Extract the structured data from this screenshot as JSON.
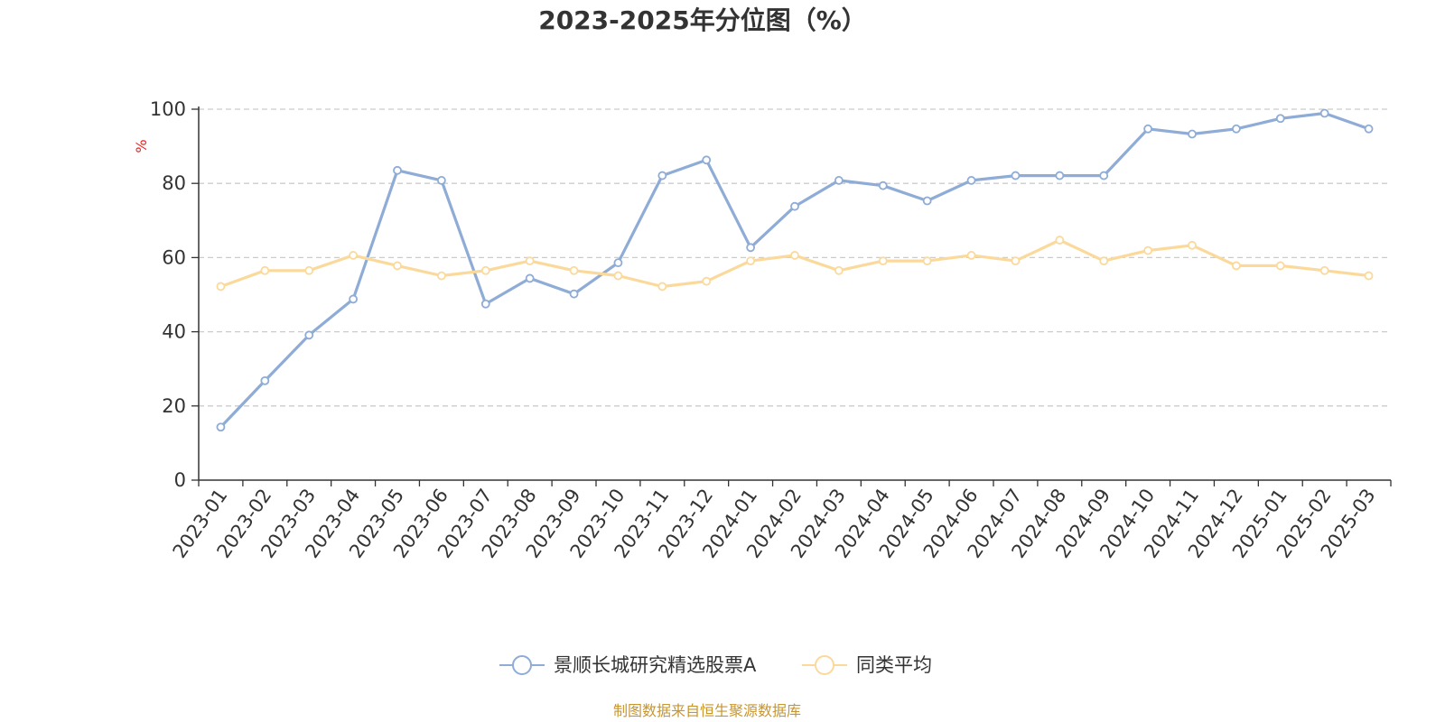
{
  "chart_data": {
    "type": "line",
    "title": "2023-2025年分位图（%）",
    "ylabel": "%",
    "ylim": [
      0,
      100
    ],
    "yticks": [
      "0",
      "20",
      "40",
      "60",
      "80",
      "100"
    ],
    "grid": true,
    "legend_position": "bottom",
    "categories": [
      "2023-01",
      "2023-02",
      "2023-03",
      "2023-04",
      "2023-05",
      "2023-06",
      "2023-07",
      "2023-08",
      "2023-09",
      "2023-10",
      "2023-11",
      "2023-12",
      "2024-01",
      "2024-02",
      "2024-03",
      "2024-04",
      "2024-05",
      "2024-06",
      "2024-07",
      "2024-08",
      "2024-09",
      "2024-10",
      "2024-11",
      "2024-12",
      "2025-01",
      "2025-02",
      "2025-03"
    ],
    "series": [
      {
        "name": "景顺长城研究精选股票A",
        "color": "#8eacd6",
        "values": [
          14.3,
          26.8,
          39.1,
          48.8,
          83.5,
          80.8,
          47.5,
          54.4,
          50.2,
          58.6,
          82.1,
          86.3,
          62.7,
          73.8,
          80.8,
          79.4,
          75.3,
          80.8,
          82.1,
          82.1,
          82.1,
          94.7,
          93.3,
          94.7,
          97.5,
          98.9,
          94.7
        ]
      },
      {
        "name": "同类平均",
        "color": "#fbd99b",
        "values": [
          52.2,
          56.5,
          56.5,
          60.6,
          57.8,
          55.1,
          56.5,
          59.1,
          56.5,
          55.1,
          52.2,
          53.6,
          59.1,
          60.6,
          56.5,
          59.1,
          59.1,
          60.6,
          59.1,
          64.7,
          59.1,
          61.9,
          63.3,
          57.8,
          57.8,
          56.5,
          55.1
        ]
      }
    ]
  },
  "source": {
    "text": "制图数据来自恒生聚源数据库",
    "color": "#c7962e"
  },
  "unit_color": "#ee2222"
}
